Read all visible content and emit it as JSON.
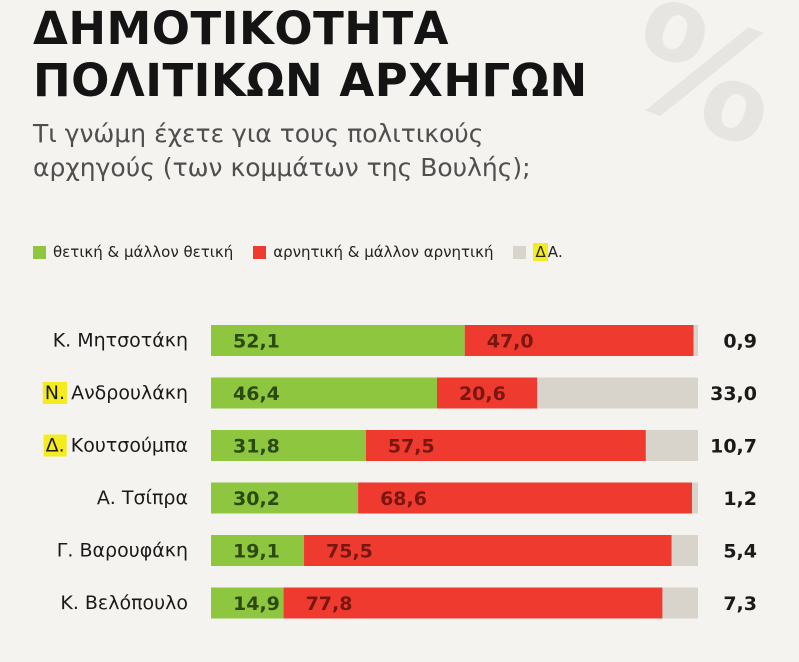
{
  "header": {
    "title_line1": "ΔΗΜΟΤΙΚΟΤΗΤΑ",
    "title_line2": "ΠΟΛΙΤΙΚΩΝ ΑΡΧΗΓΩΝ",
    "subtitle_line1": "Τι γνώμη έχετε για τους πολιτικούς",
    "subtitle_line2": "αρχηγούς (των κομμάτων της Βουλής);",
    "watermark": "%"
  },
  "legend": {
    "positive": "θετική & μάλλον θετική",
    "negative": "αρνητική & μάλλον αρνητική",
    "dk_prefix": "Δ",
    "dk_suffix": "Α."
  },
  "colors": {
    "positive": "#8ec63f",
    "positive_label": "#2b4a12",
    "negative": "#ef3b2f",
    "negative_label": "#7a1610",
    "dk": "#d9d4cb",
    "highlight": "#f4ec1f",
    "text": "#1a1a1a"
  },
  "chart_data": {
    "type": "bar",
    "stacked": true,
    "orientation": "horizontal",
    "xlim": [
      0,
      100
    ],
    "categories": [
      {
        "prefix": "",
        "name": "Κ. Μητσοτάκη"
      },
      {
        "prefix": "Ν.",
        "name": "Ανδρουλάκη"
      },
      {
        "prefix": "Δ.",
        "name": "Κουτσούμπα"
      },
      {
        "prefix": "",
        "name": "Α. Τσίπρα"
      },
      {
        "prefix": "",
        "name": "Γ. Βαρουφάκη"
      },
      {
        "prefix": "",
        "name": "Κ. Βελόπουλο"
      }
    ],
    "series": [
      {
        "name": "θετική & μάλλον θετική",
        "values": [
          52.1,
          46.4,
          31.8,
          30.2,
          19.1,
          14.9
        ],
        "labels": [
          "52,1",
          "46,4",
          "31,8",
          "30,2",
          "19,1",
          "14,9"
        ]
      },
      {
        "name": "αρνητική & μάλλον αρνητική",
        "values": [
          47.0,
          20.6,
          57.5,
          68.6,
          75.5,
          77.8
        ],
        "labels": [
          "47,0",
          "20,6",
          "57,5",
          "68,6",
          "75,5",
          "77,8"
        ]
      },
      {
        "name": "ΔΑ.",
        "values": [
          0.9,
          33.0,
          10.7,
          1.2,
          5.4,
          7.3
        ],
        "labels": [
          "0,9",
          "33,0",
          "10,7",
          "1,2",
          "5,4",
          "7,3"
        ]
      }
    ]
  }
}
